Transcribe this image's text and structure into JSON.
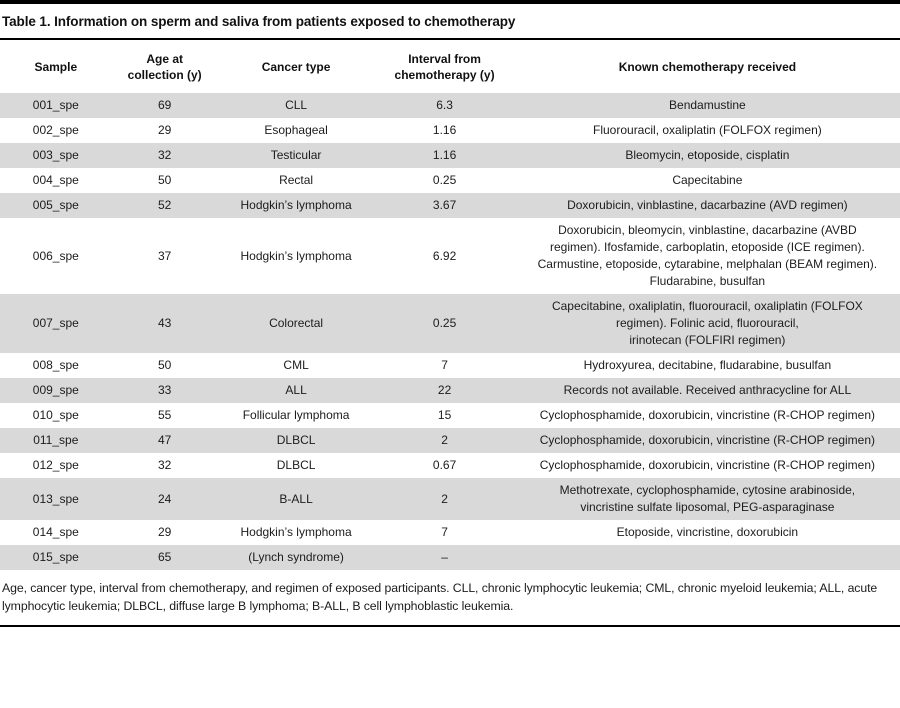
{
  "table": {
    "title": "Table 1. Information on sperm and saliva from patients exposed to chemotherapy",
    "columns": [
      "Sample",
      "Age at\ncollection (y)",
      "Cancer type",
      "Interval from\nchemotherapy (y)",
      "Known chemotherapy received"
    ],
    "rows": [
      {
        "sample": "001_spe",
        "age": "69",
        "cancer": "CLL",
        "interval": "6.3",
        "chemo": "Bendamustine"
      },
      {
        "sample": "002_spe",
        "age": "29",
        "cancer": "Esophageal",
        "interval": "1.16",
        "chemo": "Fluorouracil, oxaliplatin (FOLFOX regimen)"
      },
      {
        "sample": "003_spe",
        "age": "32",
        "cancer": "Testicular",
        "interval": "1.16",
        "chemo": "Bleomycin, etoposide, cisplatin"
      },
      {
        "sample": "004_spe",
        "age": "50",
        "cancer": "Rectal",
        "interval": "0.25",
        "chemo": "Capecitabine"
      },
      {
        "sample": "005_spe",
        "age": "52",
        "cancer": "Hodgkin’s lymphoma",
        "interval": "3.67",
        "chemo": "Doxorubicin, vinblastine, dacarbazine (AVD regimen)"
      },
      {
        "sample": "006_spe",
        "age": "37",
        "cancer": "Hodgkin’s lymphoma",
        "interval": "6.92",
        "chemo": "Doxorubicin, bleomycin, vinblastine, dacarbazine (AVBD\nregimen). Ifosfamide, carboplatin, etoposide (ICE regimen).\nCarmustine, etoposide, cytarabine, melphalan (BEAM regimen).\nFludarabine, busulfan"
      },
      {
        "sample": "007_spe",
        "age": "43",
        "cancer": "Colorectal",
        "interval": "0.25",
        "chemo": "Capecitabine, oxaliplatin, fluorouracil, oxaliplatin (FOLFOX\nregimen). Folinic acid, fluorouracil,\nirinotecan (FOLFIRI regimen)"
      },
      {
        "sample": "008_spe",
        "age": "50",
        "cancer": "CML",
        "interval": "7",
        "chemo": "Hydroxyurea, decitabine, fludarabine, busulfan"
      },
      {
        "sample": "009_spe",
        "age": "33",
        "cancer": "ALL",
        "interval": "22",
        "chemo": "Records not available. Received anthracycline for ALL"
      },
      {
        "sample": "010_spe",
        "age": "55",
        "cancer": "Follicular lymphoma",
        "interval": "15",
        "chemo": "Cyclophosphamide, doxorubicin, vincristine (R-CHOP regimen)"
      },
      {
        "sample": "011_spe",
        "age": "47",
        "cancer": "DLBCL",
        "interval": "2",
        "chemo": "Cyclophosphamide, doxorubicin, vincristine (R-CHOP regimen)"
      },
      {
        "sample": "012_spe",
        "age": "32",
        "cancer": "DLBCL",
        "interval": "0.67",
        "chemo": "Cyclophosphamide, doxorubicin, vincristine (R-CHOP regimen)"
      },
      {
        "sample": "013_spe",
        "age": "24",
        "cancer": "B-ALL",
        "interval": "2",
        "chemo": "Methotrexate, cyclophosphamide, cytosine arabinoside,\nvincristine sulfate liposomal, PEG-asparaginase"
      },
      {
        "sample": "014_spe",
        "age": "29",
        "cancer": "Hodgkin’s lymphoma",
        "interval": "7",
        "chemo": "Etoposide, vincristine, doxorubicin"
      },
      {
        "sample": "015_spe",
        "age": "65",
        "cancer": "(Lynch syndrome)",
        "interval": "–",
        "chemo": ""
      }
    ],
    "footnote": "Age, cancer type, interval from chemotherapy, and regimen of exposed participants. CLL, chronic lymphocytic leukemia; CML, chronic myeloid leukemia; ALL, acute lymphocytic leukemia; DLBCL, diffuse large B lymphoma; B-ALL, B cell lymphoblastic leukemia."
  },
  "colors": {
    "row_stripe": "#d9d9d9",
    "rule": "#000000",
    "text": "#1c1c1c"
  }
}
